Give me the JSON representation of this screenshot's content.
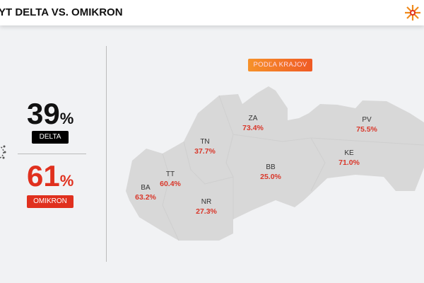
{
  "header": {
    "title": "YT DELTA VS. OMIKRON",
    "logo_icon": "sun-logo-icon"
  },
  "summary": {
    "delta": {
      "value": "39",
      "unit": "%",
      "label": "DELTA",
      "color": "#000000"
    },
    "omikron": {
      "value": "61",
      "unit": "%",
      "label": "OMIKRON",
      "color": "#e0301e"
    }
  },
  "map": {
    "button_label": "PODĽA KRAJOV",
    "regions": [
      {
        "code": "BA",
        "value": "63.2%"
      },
      {
        "code": "TT",
        "value": "60.4%"
      },
      {
        "code": "TN",
        "value": "37.7%"
      },
      {
        "code": "NR",
        "value": "27.3%"
      },
      {
        "code": "ZA",
        "value": "73.4%"
      },
      {
        "code": "BB",
        "value": "25.0%"
      },
      {
        "code": "PV",
        "value": "75.5%"
      },
      {
        "code": "KE",
        "value": "71.0%"
      }
    ]
  }
}
